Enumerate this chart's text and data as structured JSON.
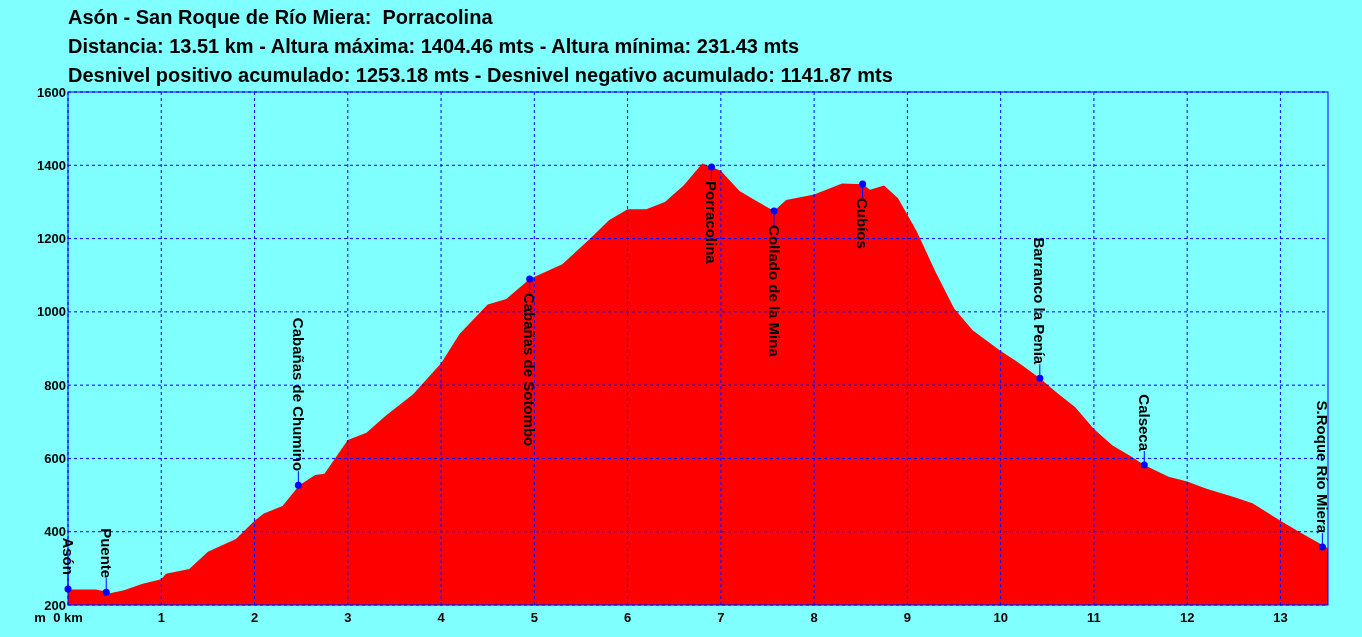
{
  "chart_data": {
    "type": "area",
    "title": "Asón - San Roque de Río Miera:  Porracolina",
    "subtitle": "Distancia: 13.51 km - Altura máxima: 1404.46 mts - Altura mínima: 231.43 mts\nDesnivel positivo acumulado: 1253.18 mts - Desnivel negativo acumulado: 1141.87 mts",
    "ylabel": "m",
    "x": [
      0,
      0.3,
      0.38,
      0.45,
      0.6,
      0.8,
      1.0,
      1.05,
      1.3,
      1.5,
      1.8,
      2.0,
      2.1,
      2.3,
      2.48,
      2.65,
      2.75,
      3.0,
      3.2,
      3.4,
      3.7,
      4.0,
      4.2,
      4.5,
      4.7,
      4.95,
      5.3,
      5.6,
      5.8,
      6.0,
      6.2,
      6.4,
      6.6,
      6.8,
      6.9,
      7.0,
      7.2,
      7.4,
      7.57,
      7.7,
      8.0,
      8.3,
      8.52,
      8.6,
      8.75,
      8.9,
      9.1,
      9.3,
      9.5,
      9.7,
      10.0,
      10.2,
      10.42,
      10.6,
      10.8,
      11.0,
      11.2,
      11.4,
      11.54,
      11.8,
      12.0,
      12.2,
      12.5,
      12.7,
      13.0,
      13.2,
      13.51
    ],
    "series": [
      {
        "color": "#ff0000",
        "values": [
          242,
          242,
          238,
          232,
          240,
          258,
          270,
          285,
          298,
          345,
          380,
          430,
          450,
          470,
          527,
          555,
          558,
          650,
          670,
          715,
          775,
          860,
          940,
          1020,
          1035,
          1090,
          1130,
          1200,
          1250,
          1280,
          1280,
          1300,
          1345,
          1405,
          1395,
          1385,
          1330,
          1300,
          1275,
          1305,
          1320,
          1350,
          1348,
          1333,
          1345,
          1310,
          1220,
          1110,
          1010,
          950,
          893,
          860,
          819,
          780,
          740,
          680,
          635,
          605,
          582,
          550,
          537,
          518,
          495,
          478,
          430,
          400,
          355
        ]
      }
    ],
    "xlim": [
      0,
      13.51
    ],
    "xticks": [
      {
        "value": 0,
        "label": "0 km"
      },
      1,
      2,
      3,
      4,
      5,
      6,
      7,
      8,
      9,
      10,
      11,
      12,
      13
    ],
    "ylim": [
      200,
      1600
    ],
    "yticks": [
      200,
      400,
      600,
      800,
      1000,
      1200,
      1400,
      1600
    ],
    "grid": true,
    "annotations": [
      {
        "text": "Asón",
        "x": 0,
        "y": 244
      },
      {
        "text": "Puente",
        "x": 0.41,
        "y": 235
      },
      {
        "text": "Cabañas de Chumino",
        "x": 2.47,
        "y": 527
      },
      {
        "text": "Cabañas de Sotombo",
        "x": 4.95,
        "y": 1090
      },
      {
        "text": "Porracolina",
        "x": 6.9,
        "y": 1395
      },
      {
        "text": "Collado de la Mina",
        "x": 7.57,
        "y": 1275
      },
      {
        "text": "Cubíos",
        "x": 8.52,
        "y": 1349
      },
      {
        "text": "Barranco la Penía",
        "x": 10.42,
        "y": 819
      },
      {
        "text": "Calseca",
        "x": 11.54,
        "y": 582
      },
      {
        "text": "S.Roque Río Miera",
        "x": 13.45,
        "y": 358
      }
    ]
  }
}
